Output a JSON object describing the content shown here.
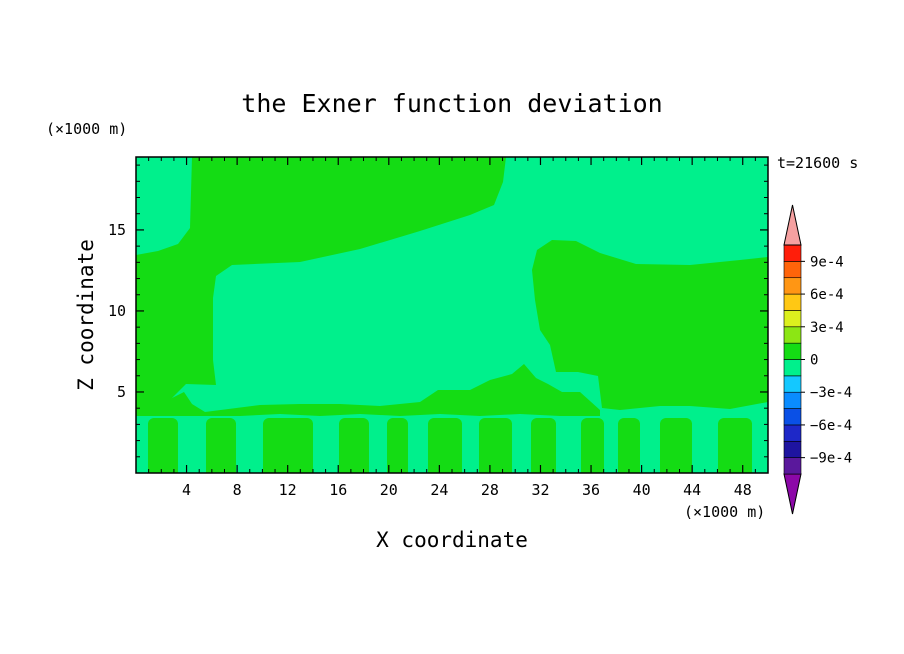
{
  "chart_data": {
    "type": "heatmap",
    "title": "the Exner function deviation",
    "xlabel": "X coordinate",
    "ylabel": "Z coordinate",
    "x_unit": "(×1000 m)",
    "y_unit": "(×1000 m)",
    "time_label": "t=21600 s",
    "xlim": [
      0,
      50
    ],
    "ylim": [
      0,
      19.5
    ],
    "x_ticks": [
      4,
      8,
      12,
      16,
      20,
      24,
      28,
      32,
      36,
      40,
      44,
      48
    ],
    "y_ticks": [
      5,
      10,
      15
    ],
    "colorbar": {
      "levels": [
        -0.00105,
        -0.0009,
        -0.00075,
        -0.0006,
        -0.00045,
        -0.0003,
        -0.00015,
        0,
        0.00015,
        0.0003,
        0.00045,
        0.0006,
        0.00075,
        0.0009,
        0.00105
      ],
      "colors": [
        "#8c08a8",
        "#5a189c",
        "#1e14a0",
        "#1e28c8",
        "#0a50e6",
        "#0a8cff",
        "#14c8ff",
        "#00f08c",
        "#14dc14",
        "#8ce614",
        "#dcf01e",
        "#ffc814",
        "#ff9614",
        "#ff640a",
        "#ff1e0a",
        "#f5a0a0"
      ],
      "labels": [
        "9e-4",
        "6e-4",
        "3e-4",
        "0",
        "−3e-4",
        "−6e-4",
        "−9e-4"
      ],
      "label_values": [
        0.0009,
        0.0006,
        0.0003,
        0,
        -0.0003,
        -0.0006,
        -0.0009
      ]
    },
    "field": {
      "background_range": [
        -0.00015,
        0
      ],
      "background_color": "#00f08c",
      "positive_region_range": [
        0,
        0.00015
      ],
      "positive_region_color": "#14dc14"
    }
  }
}
